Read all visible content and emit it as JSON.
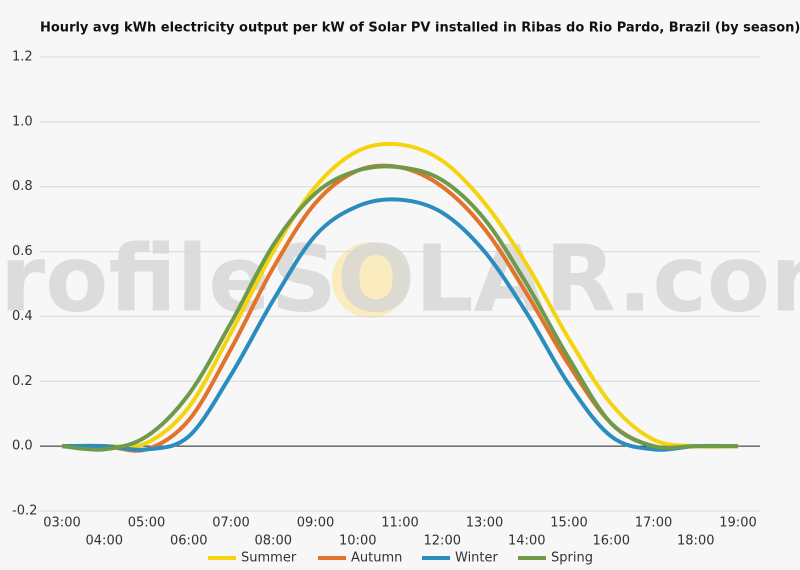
{
  "chart_data": {
    "type": "line",
    "title": "Hourly avg kWh electricity output per kW of Solar PV installed in Ribas do Rio Pardo, Brazil (by season)",
    "watermark": "profileSOLAR.com",
    "categories": [
      "03:00",
      "04:00",
      "05:00",
      "06:00",
      "07:00",
      "08:00",
      "09:00",
      "10:00",
      "11:00",
      "12:00",
      "13:00",
      "14:00",
      "15:00",
      "16:00",
      "17:00",
      "18:00",
      "19:00"
    ],
    "series": [
      {
        "name": "Summer",
        "color": "#f5d40f",
        "values": [
          0,
          0,
          0.01,
          0.12,
          0.35,
          0.6,
          0.8,
          0.91,
          0.93,
          0.88,
          0.75,
          0.56,
          0.33,
          0.13,
          0.02,
          0,
          0
        ]
      },
      {
        "name": "Autumn",
        "color": "#e2732a",
        "values": [
          0,
          0,
          -0.01,
          0.08,
          0.3,
          0.55,
          0.75,
          0.85,
          0.86,
          0.8,
          0.67,
          0.47,
          0.25,
          0.07,
          0,
          0,
          0
        ]
      },
      {
        "name": "Winter",
        "color": "#2b8cbe",
        "values": [
          0,
          0,
          -0.01,
          0.03,
          0.22,
          0.45,
          0.65,
          0.74,
          0.76,
          0.72,
          0.6,
          0.41,
          0.19,
          0.03,
          -0.01,
          0,
          0
        ]
      },
      {
        "name": "Spring",
        "color": "#6f9a4a",
        "values": [
          0,
          -0.01,
          0.03,
          0.16,
          0.38,
          0.62,
          0.78,
          0.85,
          0.86,
          0.82,
          0.7,
          0.5,
          0.27,
          0.07,
          0,
          0,
          0
        ]
      }
    ],
    "ylim": [
      -0.2,
      1.2
    ],
    "yticks": [
      -0.2,
      {
        "value": 0,
        "label": "0.0"
      },
      0.2,
      0.4,
      0.6,
      0.8,
      {
        "value": 1,
        "label": "1.0"
      },
      1.2
    ],
    "grid": true
  }
}
